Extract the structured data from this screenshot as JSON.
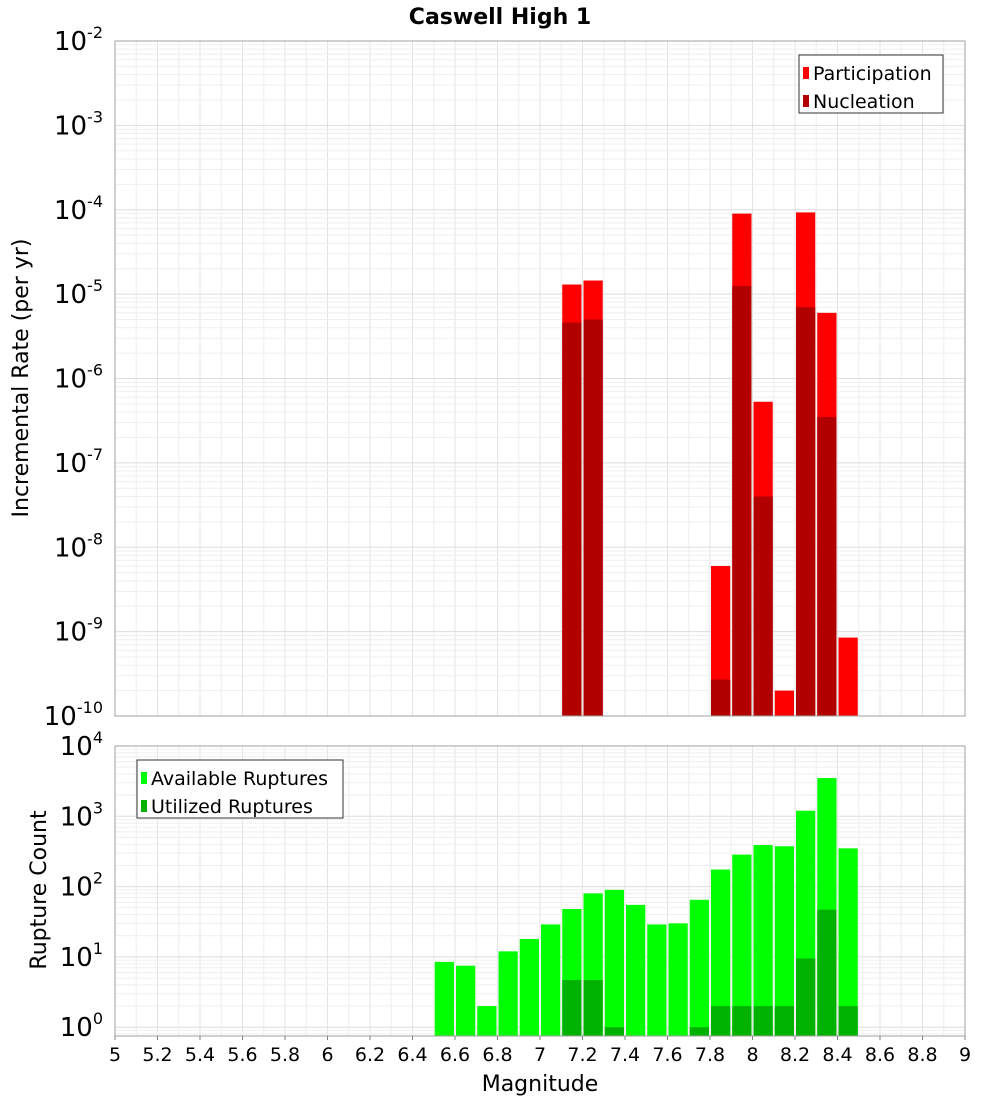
{
  "chart_data": [
    {
      "type": "bar",
      "title": "Caswell High 1",
      "ylabel": "Incremental Rate (per yr)",
      "xlabel": "",
      "xlim": [
        5,
        9
      ],
      "ylim": [
        1e-10,
        0.01
      ],
      "yscale": "log",
      "grid": true,
      "legend_position": "top-right",
      "bin_width": 0.1,
      "y_ticks": [
        {
          "base": "10",
          "exp": "-10"
        },
        {
          "base": "10",
          "exp": "-9"
        },
        {
          "base": "10",
          "exp": "-8"
        },
        {
          "base": "10",
          "exp": "-7"
        },
        {
          "base": "10",
          "exp": "-6"
        },
        {
          "base": "10",
          "exp": "-5"
        },
        {
          "base": "10",
          "exp": "-4"
        },
        {
          "base": "10",
          "exp": "-3"
        },
        {
          "base": "10",
          "exp": "-2"
        }
      ],
      "series": [
        {
          "name": "Participation",
          "color": "#ff0000",
          "points": [
            {
              "x": 7.15,
              "y": 1.3e-05
            },
            {
              "x": 7.25,
              "y": 1.45e-05
            },
            {
              "x": 7.85,
              "y": 6e-09
            },
            {
              "x": 7.95,
              "y": 9e-05
            },
            {
              "x": 8.05,
              "y": 5.3e-07
            },
            {
              "x": 8.15,
              "y": 2e-10
            },
            {
              "x": 8.25,
              "y": 9.3e-05
            },
            {
              "x": 8.35,
              "y": 6e-06
            },
            {
              "x": 8.45,
              "y": 8.5e-10
            }
          ]
        },
        {
          "name": "Nucleation",
          "color": "#b20000",
          "points": [
            {
              "x": 7.15,
              "y": 4.6e-06
            },
            {
              "x": 7.25,
              "y": 5e-06
            },
            {
              "x": 7.85,
              "y": 2.7e-10
            },
            {
              "x": 7.95,
              "y": 1.25e-05
            },
            {
              "x": 8.05,
              "y": 4e-08
            },
            {
              "x": 8.25,
              "y": 7e-06
            },
            {
              "x": 8.35,
              "y": 3.5e-07
            }
          ]
        }
      ]
    },
    {
      "type": "bar",
      "title": "",
      "ylabel": "Rupture Count",
      "xlabel": "Magnitude",
      "xlim": [
        5,
        9
      ],
      "ylim": [
        0.75,
        10000
      ],
      "yscale": "log",
      "grid": true,
      "legend_position": "top-left",
      "bin_width": 0.1,
      "x_ticks": [
        "5",
        "5.2",
        "5.4",
        "5.6",
        "5.8",
        "6",
        "6.2",
        "6.4",
        "6.6",
        "6.8",
        "7",
        "7.2",
        "7.4",
        "7.6",
        "7.8",
        "8",
        "8.2",
        "8.4",
        "8.6",
        "8.8",
        "9"
      ],
      "y_ticks": [
        {
          "base": "10",
          "exp": "0"
        },
        {
          "base": "10",
          "exp": "1"
        },
        {
          "base": "10",
          "exp": "2"
        },
        {
          "base": "10",
          "exp": "3"
        },
        {
          "base": "10",
          "exp": "4"
        }
      ],
      "series": [
        {
          "name": "Available Ruptures",
          "color": "#00ff00",
          "points": [
            {
              "x": 6.55,
              "y": 8.5
            },
            {
              "x": 6.65,
              "y": 7.5
            },
            {
              "x": 6.75,
              "y": 2
            },
            {
              "x": 6.85,
              "y": 12
            },
            {
              "x": 6.95,
              "y": 18
            },
            {
              "x": 7.05,
              "y": 29
            },
            {
              "x": 7.15,
              "y": 48
            },
            {
              "x": 7.25,
              "y": 80
            },
            {
              "x": 7.35,
              "y": 90
            },
            {
              "x": 7.45,
              "y": 55
            },
            {
              "x": 7.55,
              "y": 29
            },
            {
              "x": 7.65,
              "y": 30
            },
            {
              "x": 7.75,
              "y": 65
            },
            {
              "x": 7.85,
              "y": 175
            },
            {
              "x": 7.95,
              "y": 285
            },
            {
              "x": 8.05,
              "y": 390
            },
            {
              "x": 8.15,
              "y": 375
            },
            {
              "x": 8.25,
              "y": 1200
            },
            {
              "x": 8.35,
              "y": 3500
            },
            {
              "x": 8.45,
              "y": 350
            }
          ]
        },
        {
          "name": "Utilized Ruptures",
          "color": "#00b200",
          "points": [
            {
              "x": 7.15,
              "y": 4.7
            },
            {
              "x": 7.25,
              "y": 4.7
            },
            {
              "x": 7.35,
              "y": 1
            },
            {
              "x": 7.75,
              "y": 1
            },
            {
              "x": 7.85,
              "y": 2
            },
            {
              "x": 7.95,
              "y": 2
            },
            {
              "x": 8.05,
              "y": 2
            },
            {
              "x": 8.15,
              "y": 2
            },
            {
              "x": 8.25,
              "y": 9.5
            },
            {
              "x": 8.35,
              "y": 47
            },
            {
              "x": 8.45,
              "y": 2
            }
          ]
        }
      ]
    }
  ]
}
